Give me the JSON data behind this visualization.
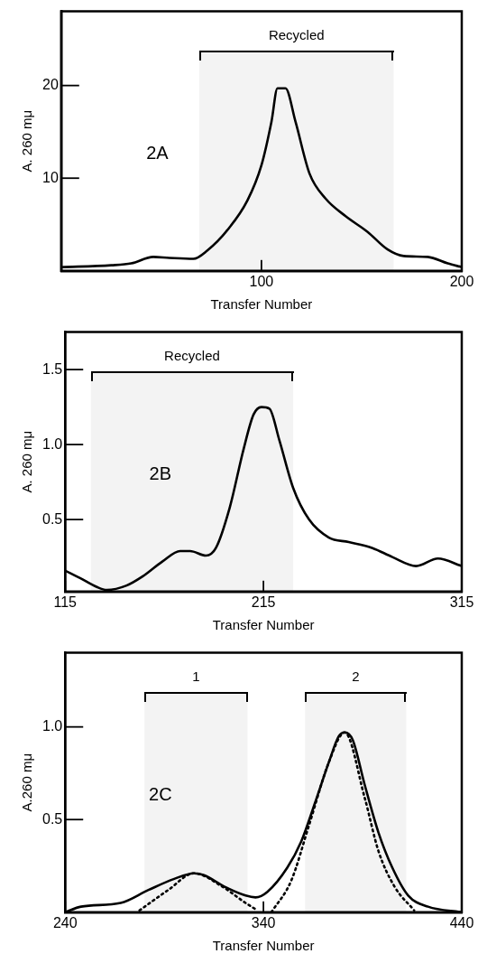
{
  "chart_data": [
    {
      "type": "line",
      "xlabel": "Transfer Number",
      "ylabel": "A. 260 mμ",
      "xlim": [
        0,
        200
      ],
      "xticks": [
        100,
        200
      ],
      "ylim": [
        0,
        28
      ],
      "yticks": [
        10,
        20
      ],
      "marker": "none",
      "annotations": [
        "2A"
      ],
      "bands": [
        {
          "axis": "x",
          "from": 69,
          "to": 166,
          "label": "Recycled"
        }
      ],
      "series": [
        {
          "color": "#000000",
          "line_style": "solid",
          "x": [
            0,
            25,
            35,
            46,
            54,
            66,
            73,
            83,
            93,
            100,
            105,
            108,
            112,
            117,
            124,
            132,
            142,
            153,
            163,
            171,
            183,
            193,
            200
          ],
          "values": [
            0.4,
            0.6,
            0.8,
            1.5,
            1.4,
            1.3,
            2.2,
            4.4,
            7.6,
            11.4,
            16.1,
            19.7,
            19.7,
            16.1,
            10.5,
            7.8,
            5.9,
            4.2,
            2.3,
            1.6,
            1.5,
            0.8,
            0.4
          ]
        }
      ]
    },
    {
      "type": "line",
      "xlabel": "Transfer Number",
      "ylabel": "A. 260 mμ",
      "xlim": [
        115,
        315
      ],
      "xticks": [
        115,
        215,
        315
      ],
      "ylim": [
        0.02,
        1.75
      ],
      "yticks": [
        0.5,
        {
          "value": 1.0,
          "label": "1.0"
        },
        1.5
      ],
      "marker": "none",
      "annotations": [
        "2B"
      ],
      "bands": [
        {
          "axis": "x",
          "from": 128,
          "to": 230,
          "label": "Recycled"
        }
      ],
      "series": [
        {
          "color": "#000000",
          "line_style": "solid",
          "x": [
            115,
            122.5,
            131,
            136,
            146,
            154,
            164,
            173,
            178,
            186,
            191,
            198,
            205,
            210,
            214,
            218,
            223,
            230,
            238,
            248,
            258,
            270,
            280,
            292,
            303,
            315
          ],
          "values": [
            0.16,
            0.11,
            0.05,
            0.03,
            0.06,
            0.12,
            0.22,
            0.29,
            0.29,
            0.26,
            0.31,
            0.58,
            0.97,
            1.2,
            1.25,
            1.24,
            1.03,
            0.71,
            0.5,
            0.38,
            0.35,
            0.31,
            0.25,
            0.19,
            0.24,
            0.19
          ]
        }
      ]
    },
    {
      "type": "line",
      "xlabel": "Transfer Number",
      "ylabel": "A.260 mμ",
      "xlim": [
        240,
        440
      ],
      "xticks": [
        240,
        340,
        440
      ],
      "ylim": [
        0,
        1.4
      ],
      "yticks": [
        0.5,
        {
          "value": 1.0,
          "label": "1.0"
        }
      ],
      "marker": "none",
      "annotations": [
        "2C"
      ],
      "bands": [
        {
          "axis": "x",
          "from": 280,
          "to": 332,
          "label": "1"
        },
        {
          "axis": "x",
          "from": 361,
          "to": 412,
          "label": "2"
        }
      ],
      "series": [
        {
          "color": "#000000",
          "line_style": "solid",
          "x": [
            240,
            248,
            268,
            282,
            295,
            305,
            310,
            320,
            331,
            336,
            342,
            352,
            359,
            366,
            373,
            378,
            381,
            385,
            391,
            398,
            405,
            413,
            423,
            440
          ],
          "values": [
            0,
            0.03,
            0.05,
            0.12,
            0.18,
            0.21,
            0.2,
            0.14,
            0.09,
            0.08,
            0.11,
            0.24,
            0.38,
            0.59,
            0.81,
            0.95,
            0.97,
            0.93,
            0.69,
            0.43,
            0.24,
            0.09,
            0.03,
            0
          ]
        },
        {
          "color": "#000000",
          "line_style": "dotted",
          "x": [
            277.5,
            292,
            305,
            319,
            331,
            337,
            340,
            344,
            354,
            363,
            373,
            381,
            391,
            398,
            406,
            416
          ],
          "values": [
            0.01,
            0.12,
            0.21,
            0.14,
            0.05,
            0.01,
            null,
            0,
            0.17,
            0.47,
            0.81,
            0.97,
            0.62,
            0.33,
            0.14,
            0.01
          ]
        }
      ]
    }
  ]
}
